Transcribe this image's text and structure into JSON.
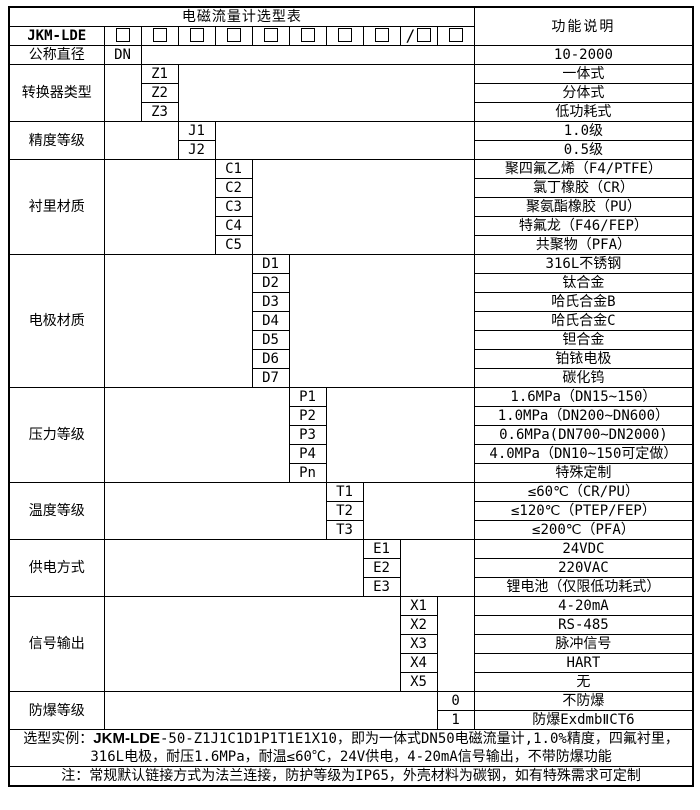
{
  "header": {
    "title": "电磁流量计选型表",
    "right_title": "功能说明",
    "model_prefix": "JKM-LDE",
    "checkbox_cells": [
      "",
      "",
      "",
      "",
      "",
      "",
      "",
      "",
      "/",
      ""
    ]
  },
  "sections": [
    {
      "label": "公称直径",
      "col": 0,
      "rows": [
        {
          "code": "DN",
          "desc": "10-2000"
        }
      ]
    },
    {
      "label": "转换器类型",
      "col": 1,
      "rows": [
        {
          "code": "Z1",
          "desc": "一体式"
        },
        {
          "code": "Z2",
          "desc": "分体式"
        },
        {
          "code": "Z3",
          "desc": "低功耗式"
        }
      ]
    },
    {
      "label": "精度等级",
      "col": 2,
      "rows": [
        {
          "code": "J1",
          "desc": "1.0级"
        },
        {
          "code": "J2",
          "desc": "0.5级"
        }
      ]
    },
    {
      "label": "衬里材质",
      "col": 3,
      "rows": [
        {
          "code": "C1",
          "desc": "聚四氟乙烯（F4/PTFE）"
        },
        {
          "code": "C2",
          "desc": "氯丁橡胶（CR）"
        },
        {
          "code": "C3",
          "desc": "聚氨酯橡胶（PU）"
        },
        {
          "code": "C4",
          "desc": "特氟龙（F46/FEP）"
        },
        {
          "code": "C5",
          "desc": "共聚物（PFA）"
        }
      ]
    },
    {
      "label": "电极材质",
      "col": 4,
      "rows": [
        {
          "code": "D1",
          "desc": "316L不锈钢"
        },
        {
          "code": "D2",
          "desc": "钛合金"
        },
        {
          "code": "D3",
          "desc": "哈氏合金B"
        },
        {
          "code": "D4",
          "desc": "哈氏合金C"
        },
        {
          "code": "D5",
          "desc": "钽合金"
        },
        {
          "code": "D6",
          "desc": "铂铱电极"
        },
        {
          "code": "D7",
          "desc": "碳化钨"
        }
      ]
    },
    {
      "label": "压力等级",
      "col": 5,
      "rows": [
        {
          "code": "P1",
          "desc": "1.6MPa（DN15~150）"
        },
        {
          "code": "P2",
          "desc": "1.0MPa（DN200~DN600）"
        },
        {
          "code": "P3",
          "desc": "0.6MPa(DN700~DN2000)"
        },
        {
          "code": "P4",
          "desc": "4.0MPa（DN10~150可定做）"
        },
        {
          "code": "Pn",
          "desc": "特殊定制"
        }
      ]
    },
    {
      "label": "温度等级",
      "col": 6,
      "rows": [
        {
          "code": "T1",
          "desc": "≤60℃（CR/PU）"
        },
        {
          "code": "T2",
          "desc": "≤120℃（PTEP/FEP）"
        },
        {
          "code": "T3",
          "desc": "≤200℃（PFA）"
        }
      ]
    },
    {
      "label": "供电方式",
      "col": 7,
      "rows": [
        {
          "code": "E1",
          "desc": "24VDC"
        },
        {
          "code": "E2",
          "desc": "220VAC"
        },
        {
          "code": "E3",
          "desc": "锂电池（仅限低功耗式）"
        }
      ]
    },
    {
      "label": "信号输出",
      "col": 8,
      "rows": [
        {
          "code": "X1",
          "desc": "4-20mA"
        },
        {
          "code": "X2",
          "desc": "RS-485"
        },
        {
          "code": "X3",
          "desc": "脉冲信号"
        },
        {
          "code": "X4",
          "desc": "HART"
        },
        {
          "code": "X5",
          "desc": "无"
        }
      ]
    },
    {
      "label": "防爆等级",
      "col": 9,
      "rows": [
        {
          "code": "0",
          "desc": "不防爆"
        },
        {
          "code": "1",
          "desc": "防爆ExdmbⅡCT6"
        }
      ]
    }
  ],
  "footer": {
    "example_prefix": "选型实例：",
    "example_model": "JKM-LDE",
    "example_rest": "-50-Z1J1C1D1P1T1E1X10，即为一体式DN50电磁流量计,1.0%精度，四氟衬里，",
    "example_line2": "316L电极，耐压1.6MPa，耐温≤60℃，24V供电，4-20mA信号输出，不带防爆功能",
    "note": "注：常规默认链接方式为法兰连接，防护等级为IP65，外壳材料为碳钢，如有特殊需求可定制"
  },
  "colors": {
    "border": "#000000",
    "background": "#ffffff",
    "text": "#000000"
  }
}
